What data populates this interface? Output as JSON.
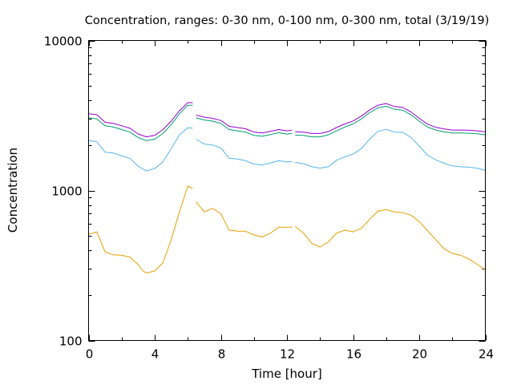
{
  "chart_data": {
    "type": "line",
    "title": "Concentration, ranges: 0-30 nm, 0-100 nm, 0-300 nm, total (3/19/19)",
    "xlabel": "Time [hour]",
    "ylabel": "Concentration",
    "xlim": [
      0,
      24
    ],
    "ylim": [
      100,
      10000
    ],
    "yscale": "log",
    "grid": false,
    "x_ticks": [
      {
        "value": 0,
        "label": "0"
      },
      {
        "value": 4,
        "label": "4"
      },
      {
        "value": 8,
        "label": "8"
      },
      {
        "value": 12,
        "label": "12"
      },
      {
        "value": 16,
        "label": "16"
      },
      {
        "value": 20,
        "label": "20"
      },
      {
        "value": 24,
        "label": "24"
      }
    ],
    "y_ticks": [
      {
        "value": 100,
        "label": "100"
      },
      {
        "value": 1000,
        "label": "1000"
      },
      {
        "value": 10000,
        "label": "10000"
      }
    ],
    "series": [
      {
        "color": "#e69f00",
        "segments": [
          [
            [
              0.0,
              510
            ],
            [
              0.5,
              530
            ],
            [
              1.0,
              390
            ],
            [
              1.5,
              372
            ],
            [
              2.0,
              370
            ],
            [
              2.5,
              360
            ],
            [
              3.0,
              320
            ],
            [
              3.3,
              290
            ],
            [
              3.5,
              282
            ],
            [
              4.0,
              290
            ],
            [
              4.5,
              330
            ],
            [
              5.0,
              470
            ],
            [
              5.5,
              720
            ],
            [
              6.0,
              1070
            ],
            [
              6.3,
              1030
            ]
          ],
          [
            [
              6.5,
              840
            ],
            [
              7.0,
              720
            ],
            [
              7.5,
              760
            ],
            [
              8.0,
              700
            ],
            [
              8.5,
              545
            ],
            [
              9.0,
              535
            ],
            [
              9.5,
              535
            ],
            [
              10.0,
              505
            ],
            [
              10.5,
              490
            ],
            [
              11.0,
              520
            ],
            [
              11.5,
              570
            ],
            [
              12.0,
              570
            ],
            [
              12.3,
              570
            ]
          ],
          [
            [
              12.5,
              575
            ],
            [
              13.0,
              520
            ],
            [
              13.5,
              445
            ],
            [
              14.0,
              420
            ],
            [
              14.5,
              455
            ],
            [
              15.0,
              520
            ],
            [
              15.5,
              545
            ],
            [
              16.0,
              530
            ],
            [
              16.5,
              560
            ],
            [
              17.0,
              640
            ],
            [
              17.5,
              730
            ],
            [
              18.0,
              745
            ],
            [
              18.5,
              720
            ],
            [
              19.0,
              710
            ],
            [
              19.5,
              685
            ],
            [
              20.0,
              620
            ],
            [
              20.5,
              540
            ],
            [
              21.0,
              470
            ],
            [
              21.5,
              410
            ],
            [
              22.0,
              380
            ],
            [
              22.5,
              370
            ],
            [
              23.0,
              350
            ],
            [
              23.5,
              322
            ],
            [
              24.0,
              295
            ]
          ]
        ]
      },
      {
        "color": "#56b4e9",
        "segments": [
          [
            [
              0.0,
              2150
            ],
            [
              0.5,
              2120
            ],
            [
              1.0,
              1800
            ],
            [
              1.5,
              1780
            ],
            [
              2.0,
              1700
            ],
            [
              2.5,
              1640
            ],
            [
              3.0,
              1450
            ],
            [
              3.5,
              1350
            ],
            [
              4.0,
              1400
            ],
            [
              4.5,
              1550
            ],
            [
              5.0,
              1900
            ],
            [
              5.5,
              2350
            ],
            [
              6.0,
              2620
            ],
            [
              6.3,
              2600
            ]
          ],
          [
            [
              6.5,
              2200
            ],
            [
              7.0,
              2040
            ],
            [
              7.5,
              2010
            ],
            [
              8.0,
              1920
            ],
            [
              8.5,
              1640
            ],
            [
              9.0,
              1620
            ],
            [
              9.5,
              1580
            ],
            [
              10.0,
              1500
            ],
            [
              10.5,
              1480
            ],
            [
              11.0,
              1530
            ],
            [
              11.5,
              1580
            ],
            [
              12.0,
              1550
            ],
            [
              12.3,
              1560
            ]
          ],
          [
            [
              12.5,
              1540
            ],
            [
              13.0,
              1510
            ],
            [
              13.5,
              1440
            ],
            [
              14.0,
              1410
            ],
            [
              14.5,
              1440
            ],
            [
              15.0,
              1590
            ],
            [
              15.5,
              1680
            ],
            [
              16.0,
              1750
            ],
            [
              16.5,
              1900
            ],
            [
              17.0,
              2200
            ],
            [
              17.5,
              2480
            ],
            [
              18.0,
              2560
            ],
            [
              18.5,
              2450
            ],
            [
              19.0,
              2440
            ],
            [
              19.5,
              2260
            ],
            [
              20.0,
              1980
            ],
            [
              20.5,
              1720
            ],
            [
              21.0,
              1600
            ],
            [
              21.5,
              1520
            ],
            [
              22.0,
              1460
            ],
            [
              22.5,
              1440
            ],
            [
              23.0,
              1430
            ],
            [
              23.5,
              1410
            ],
            [
              24.0,
              1360
            ]
          ]
        ]
      },
      {
        "color": "#009e73",
        "segments": [
          [
            [
              0.0,
              3050
            ],
            [
              0.5,
              3000
            ],
            [
              1.0,
              2700
            ],
            [
              1.5,
              2650
            ],
            [
              2.0,
              2550
            ],
            [
              2.5,
              2450
            ],
            [
              3.0,
              2250
            ],
            [
              3.5,
              2150
            ],
            [
              4.0,
              2200
            ],
            [
              4.5,
              2400
            ],
            [
              5.0,
              2750
            ],
            [
              5.5,
              3250
            ],
            [
              6.0,
              3700
            ],
            [
              6.3,
              3700
            ]
          ],
          [
            [
              6.5,
              3050
            ],
            [
              7.0,
              2950
            ],
            [
              7.5,
              2900
            ],
            [
              8.0,
              2800
            ],
            [
              8.5,
              2550
            ],
            [
              9.0,
              2500
            ],
            [
              9.5,
              2450
            ],
            [
              10.0,
              2330
            ],
            [
              10.5,
              2300
            ],
            [
              11.0,
              2360
            ],
            [
              11.5,
              2430
            ],
            [
              12.0,
              2380
            ],
            [
              12.3,
              2400
            ]
          ],
          [
            [
              12.5,
              2340
            ],
            [
              13.0,
              2330
            ],
            [
              13.5,
              2280
            ],
            [
              14.0,
              2280
            ],
            [
              14.5,
              2350
            ],
            [
              15.0,
              2500
            ],
            [
              15.5,
              2650
            ],
            [
              16.0,
              2780
            ],
            [
              16.5,
              3000
            ],
            [
              17.0,
              3300
            ],
            [
              17.5,
              3550
            ],
            [
              18.0,
              3650
            ],
            [
              18.5,
              3480
            ],
            [
              19.0,
              3430
            ],
            [
              19.5,
              3200
            ],
            [
              20.0,
              2900
            ],
            [
              20.5,
              2650
            ],
            [
              21.0,
              2530
            ],
            [
              21.5,
              2460
            ],
            [
              22.0,
              2420
            ],
            [
              22.5,
              2420
            ],
            [
              23.0,
              2410
            ],
            [
              23.5,
              2390
            ],
            [
              24.0,
              2350
            ]
          ]
        ]
      },
      {
        "color": "#9400d3",
        "segments": [
          [
            [
              0.0,
              3250
            ],
            [
              0.5,
              3200
            ],
            [
              1.0,
              2850
            ],
            [
              1.5,
              2800
            ],
            [
              2.0,
              2700
            ],
            [
              2.5,
              2600
            ],
            [
              3.0,
              2380
            ],
            [
              3.5,
              2280
            ],
            [
              4.0,
              2330
            ],
            [
              4.5,
              2550
            ],
            [
              5.0,
              2900
            ],
            [
              5.5,
              3400
            ],
            [
              6.0,
              3850
            ],
            [
              6.3,
              3850
            ]
          ],
          [
            [
              6.5,
              3180
            ],
            [
              7.0,
              3080
            ],
            [
              7.5,
              3030
            ],
            [
              8.0,
              2930
            ],
            [
              8.5,
              2680
            ],
            [
              9.0,
              2630
            ],
            [
              9.5,
              2580
            ],
            [
              10.0,
              2450
            ],
            [
              10.5,
              2420
            ],
            [
              11.0,
              2480
            ],
            [
              11.5,
              2550
            ],
            [
              12.0,
              2500
            ],
            [
              12.3,
              2520
            ]
          ],
          [
            [
              12.5,
              2460
            ],
            [
              13.0,
              2450
            ],
            [
              13.5,
              2400
            ],
            [
              14.0,
              2400
            ],
            [
              14.5,
              2470
            ],
            [
              15.0,
              2630
            ],
            [
              15.5,
              2780
            ],
            [
              16.0,
              2910
            ],
            [
              16.5,
              3130
            ],
            [
              17.0,
              3440
            ],
            [
              17.5,
              3700
            ],
            [
              18.0,
              3800
            ],
            [
              18.5,
              3630
            ],
            [
              19.0,
              3580
            ],
            [
              19.5,
              3340
            ],
            [
              20.0,
              3030
            ],
            [
              20.5,
              2770
            ],
            [
              21.0,
              2640
            ],
            [
              21.5,
              2570
            ],
            [
              22.0,
              2530
            ],
            [
              22.5,
              2530
            ],
            [
              23.0,
              2520
            ],
            [
              23.5,
              2500
            ],
            [
              24.0,
              2460
            ]
          ]
        ]
      }
    ]
  }
}
